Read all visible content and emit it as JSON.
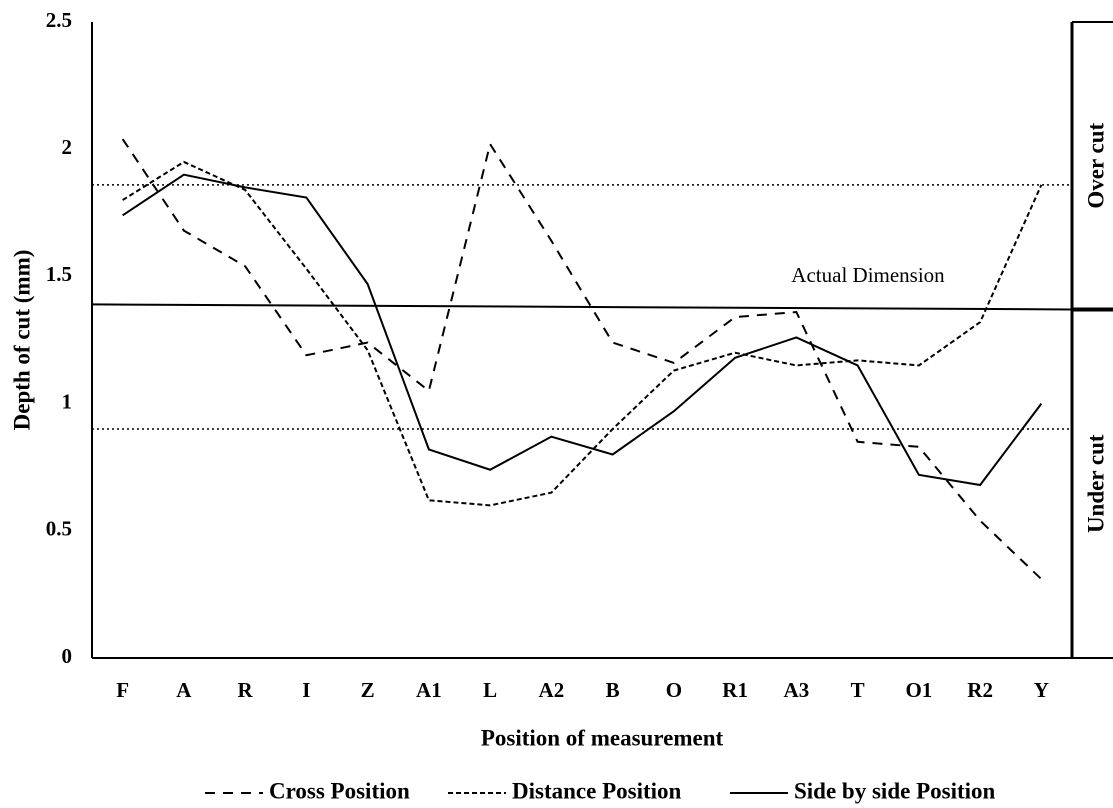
{
  "chart_data": {
    "type": "line",
    "x_label": "Position of measurement",
    "y_label": "Depth of cut (mm)",
    "categories": [
      "F",
      "A",
      "R",
      "I",
      "Z",
      "A1",
      "L",
      "A2",
      "B",
      "O",
      "R1",
      "A3",
      "T",
      "O1",
      "R2",
      "Y"
    ],
    "series": [
      {
        "name": "Cross Position",
        "color": "#000000",
        "dash": "long",
        "values": [
          2.04,
          1.68,
          1.54,
          1.19,
          1.24,
          1.05,
          2.02,
          1.64,
          1.24,
          1.16,
          1.34,
          1.36,
          0.85,
          0.83,
          0.54,
          0.31
        ]
      },
      {
        "name": "Distance Position",
        "color": "#000000",
        "dash": "short",
        "values": [
          1.8,
          1.95,
          1.84,
          1.53,
          1.21,
          0.62,
          0.6,
          0.65,
          0.9,
          1.13,
          1.2,
          1.15,
          1.17,
          1.15,
          1.32,
          1.86
        ]
      },
      {
        "name": "Side by side Position",
        "color": "#000000",
        "dash": "solid",
        "values": [
          1.74,
          1.9,
          1.85,
          1.81,
          1.47,
          0.82,
          0.74,
          0.87,
          0.8,
          0.97,
          1.18,
          1.26,
          1.15,
          0.72,
          0.68,
          1.0
        ]
      }
    ],
    "ylim": [
      0,
      2.5
    ],
    "yticks": [
      0,
      0.5,
      1,
      1.5,
      2,
      2.5
    ],
    "grid": false,
    "legend": "bottom",
    "limit_lines": [
      1.86,
      0.9
    ],
    "actual_dimension": {
      "label": "Actual Dimension",
      "values": [
        1.39,
        1.37
      ]
    },
    "bands": [
      "Over cut",
      "Under cut"
    ]
  }
}
